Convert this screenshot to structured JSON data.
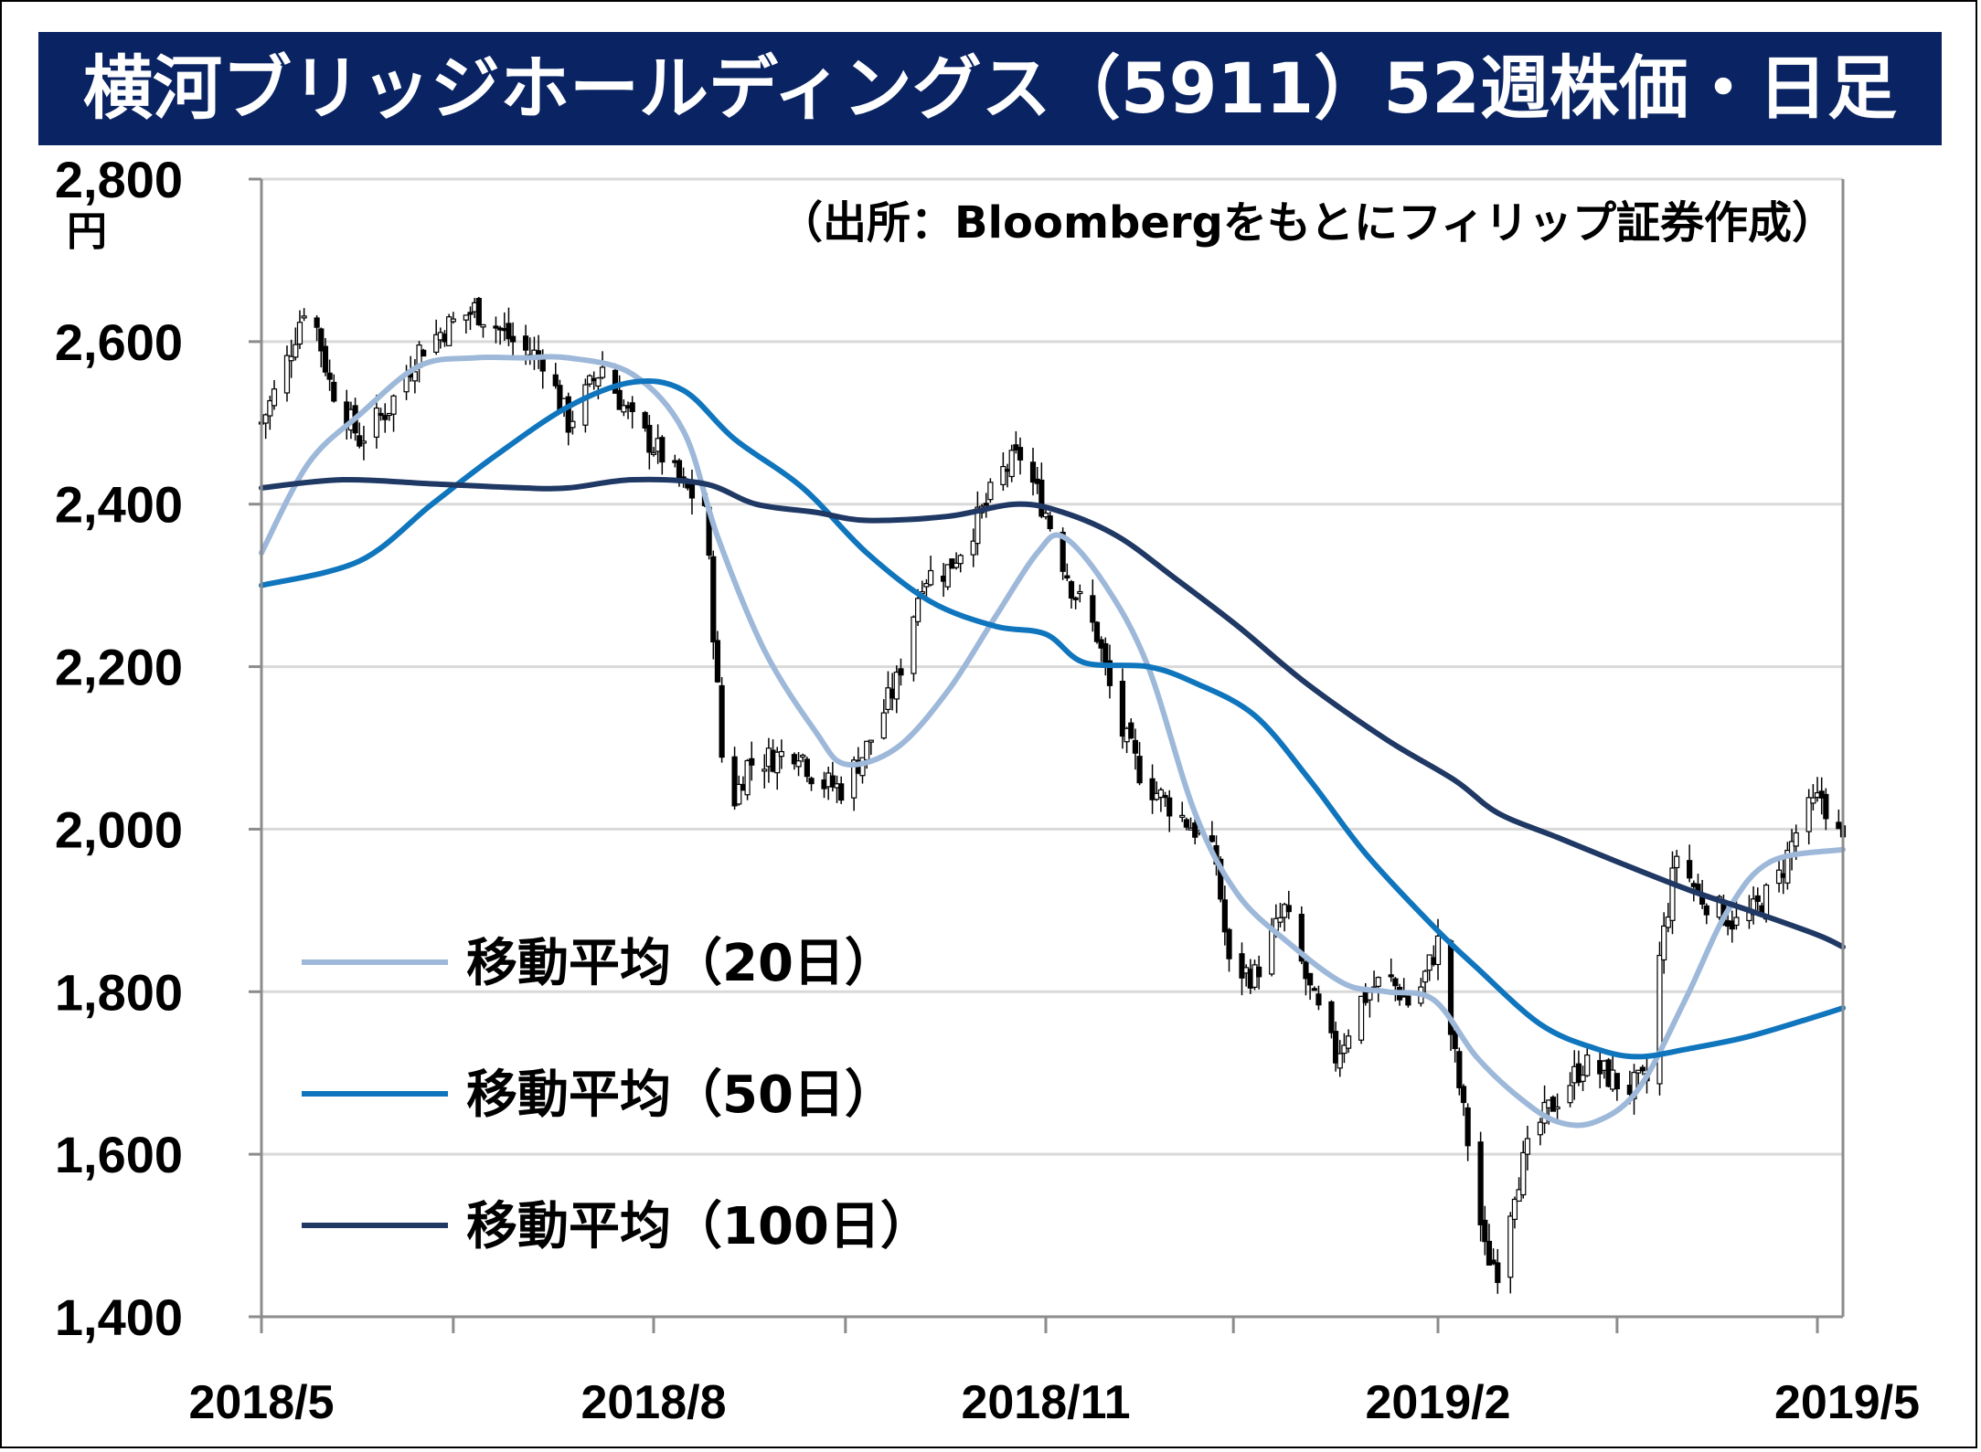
{
  "title": "横河ブリッジホールディングス（5911）52週株価・日足",
  "source_note": "（出所：Bloombergをもとにフィリップ証券作成）",
  "colors": {
    "title_bg": "#0a2463",
    "ma20": "#9db8d9",
    "ma50": "#0f75bd",
    "ma100": "#1f3864",
    "candle": "#000000",
    "grid": "#d9d9d9"
  },
  "chart_data": {
    "type": "line",
    "title": "横河ブリッジホールディングス（5911）52週株価・日足",
    "y_unit": "円",
    "ylim": [
      1400,
      2800
    ],
    "y_ticks": [
      "1,400",
      "1,600",
      "1,800",
      "2,000",
      "2,200",
      "2,400",
      "2,600",
      "2,800"
    ],
    "y_tick_values": [
      1400,
      1600,
      1800,
      2000,
      2200,
      2400,
      2600,
      2800
    ],
    "x_tick_labels": [
      "2018/5",
      "2018/8",
      "2018/11",
      "2019/2",
      "2019/5"
    ],
    "x_tick_dates": [
      "2018-05-01",
      "2018-08-01",
      "2018-11-01",
      "2019-02-01",
      "2019-05-01"
    ],
    "x_minor_tick_dates": [
      "2018-06-15",
      "2018-09-15",
      "2018-12-15",
      "2019-03-15"
    ],
    "xlim": [
      "2018-05-01",
      "2019-05-07"
    ],
    "grid": true,
    "legend_placement": "bottom-left",
    "price_path": [
      [
        "2018-05-01",
        2500
      ],
      [
        "2018-05-06",
        2560
      ],
      [
        "2018-05-12",
        2660
      ],
      [
        "2018-05-17",
        2550
      ],
      [
        "2018-05-24",
        2480
      ],
      [
        "2018-05-31",
        2520
      ],
      [
        "2018-06-07",
        2590
      ],
      [
        "2018-06-14",
        2620
      ],
      [
        "2018-06-20",
        2640
      ],
      [
        "2018-06-25",
        2620
      ],
      [
        "2018-07-01",
        2590
      ],
      [
        "2018-07-06",
        2580
      ],
      [
        "2018-07-12",
        2500
      ],
      [
        "2018-07-20",
        2570
      ],
      [
        "2018-07-27",
        2500
      ],
      [
        "2018-08-03",
        2460
      ],
      [
        "2018-08-08",
        2420
      ],
      [
        "2018-08-13",
        2400
      ],
      [
        "2018-08-16",
        2170
      ],
      [
        "2018-08-18",
        2010
      ],
      [
        "2018-08-23",
        2080
      ],
      [
        "2018-08-30",
        2090
      ],
      [
        "2018-09-04",
        2100
      ],
      [
        "2018-09-08",
        2060
      ],
      [
        "2018-09-14",
        2050
      ],
      [
        "2018-09-20",
        2100
      ],
      [
        "2018-09-27",
        2180
      ],
      [
        "2018-10-03",
        2310
      ],
      [
        "2018-10-09",
        2320
      ],
      [
        "2018-10-16",
        2380
      ],
      [
        "2018-10-22",
        2440
      ],
      [
        "2018-10-26",
        2460
      ],
      [
        "2018-11-01",
        2390
      ],
      [
        "2018-11-07",
        2300
      ],
      [
        "2018-11-13",
        2240
      ],
      [
        "2018-11-18",
        2130
      ],
      [
        "2018-11-24",
        2060
      ],
      [
        "2018-11-30",
        2030
      ],
      [
        "2018-12-06",
        2000
      ],
      [
        "2018-12-11",
        1960
      ],
      [
        "2018-12-14",
        1830
      ],
      [
        "2018-12-20",
        1820
      ],
      [
        "2018-12-27",
        1900
      ],
      [
        "2019-01-02",
        1800
      ],
      [
        "2019-01-08",
        1720
      ],
      [
        "2019-01-14",
        1790
      ],
      [
        "2019-01-20",
        1820
      ],
      [
        "2019-01-26",
        1780
      ],
      [
        "2019-02-01",
        1860
      ],
      [
        "2019-02-04",
        1750
      ],
      [
        "2019-02-07",
        1650
      ],
      [
        "2019-02-12",
        1480
      ],
      [
        "2019-02-15",
        1460
      ],
      [
        "2019-02-19",
        1560
      ],
      [
        "2019-02-24",
        1630
      ],
      [
        "2019-03-01",
        1670
      ],
      [
        "2019-03-07",
        1710
      ],
      [
        "2019-03-12",
        1700
      ],
      [
        "2019-03-17",
        1680
      ],
      [
        "2019-03-22",
        1690
      ],
      [
        "2019-03-25",
        1840
      ],
      [
        "2019-03-29",
        1970
      ],
      [
        "2019-04-03",
        1920
      ],
      [
        "2019-04-08",
        1900
      ],
      [
        "2019-04-13",
        1880
      ],
      [
        "2019-04-18",
        1910
      ],
      [
        "2019-04-22",
        1940
      ],
      [
        "2019-04-27",
        2010
      ],
      [
        "2019-05-02",
        2040
      ],
      [
        "2019-05-07",
        1980
      ]
    ],
    "series": [
      {
        "name": "移動平均（20日）",
        "color": "#9db8d9",
        "points": [
          [
            "2018-05-01",
            2340
          ],
          [
            "2018-05-12",
            2450
          ],
          [
            "2018-05-24",
            2510
          ],
          [
            "2018-06-07",
            2570
          ],
          [
            "2018-06-20",
            2580
          ],
          [
            "2018-07-01",
            2580
          ],
          [
            "2018-07-12",
            2580
          ],
          [
            "2018-07-27",
            2560
          ],
          [
            "2018-08-08",
            2490
          ],
          [
            "2018-08-16",
            2360
          ],
          [
            "2018-08-27",
            2220
          ],
          [
            "2018-09-08",
            2120
          ],
          [
            "2018-09-15",
            2080
          ],
          [
            "2018-09-27",
            2100
          ],
          [
            "2018-10-09",
            2170
          ],
          [
            "2018-10-20",
            2260
          ],
          [
            "2018-10-30",
            2340
          ],
          [
            "2018-11-05",
            2360
          ],
          [
            "2018-11-15",
            2300
          ],
          [
            "2018-11-25",
            2200
          ],
          [
            "2018-12-06",
            2020
          ],
          [
            "2018-12-16",
            1920
          ],
          [
            "2018-12-28",
            1860
          ],
          [
            "2019-01-10",
            1810
          ],
          [
            "2019-01-20",
            1800
          ],
          [
            "2019-01-31",
            1790
          ],
          [
            "2019-02-10",
            1720
          ],
          [
            "2019-02-20",
            1670
          ],
          [
            "2019-03-01",
            1640
          ],
          [
            "2019-03-10",
            1640
          ],
          [
            "2019-03-20",
            1680
          ],
          [
            "2019-03-31",
            1790
          ],
          [
            "2019-04-10",
            1900
          ],
          [
            "2019-04-20",
            1960
          ],
          [
            "2019-05-07",
            1975
          ]
        ]
      },
      {
        "name": "移動平均（50日）",
        "color": "#0f75bd",
        "points": [
          [
            "2018-05-01",
            2300
          ],
          [
            "2018-05-24",
            2330
          ],
          [
            "2018-06-10",
            2400
          ],
          [
            "2018-06-25",
            2460
          ],
          [
            "2018-07-12",
            2520
          ],
          [
            "2018-07-27",
            2550
          ],
          [
            "2018-08-08",
            2540
          ],
          [
            "2018-08-20",
            2480
          ],
          [
            "2018-09-05",
            2420
          ],
          [
            "2018-09-20",
            2340
          ],
          [
            "2018-10-05",
            2280
          ],
          [
            "2018-10-20",
            2250
          ],
          [
            "2018-11-01",
            2240
          ],
          [
            "2018-11-10",
            2205
          ],
          [
            "2018-11-25",
            2200
          ],
          [
            "2018-12-06",
            2180
          ],
          [
            "2018-12-20",
            2140
          ],
          [
            "2019-01-02",
            2060
          ],
          [
            "2019-01-15",
            1970
          ],
          [
            "2019-01-31",
            1880
          ],
          [
            "2019-02-10",
            1830
          ],
          [
            "2019-02-25",
            1760
          ],
          [
            "2019-03-10",
            1730
          ],
          [
            "2019-03-20",
            1720
          ],
          [
            "2019-04-01",
            1730
          ],
          [
            "2019-04-15",
            1745
          ],
          [
            "2019-05-01",
            1770
          ],
          [
            "2019-05-07",
            1780
          ]
        ]
      },
      {
        "name": "移動平均（100日）",
        "color": "#1f3864",
        "points": [
          [
            "2018-05-01",
            2420
          ],
          [
            "2018-05-20",
            2430
          ],
          [
            "2018-06-10",
            2425
          ],
          [
            "2018-07-01",
            2420
          ],
          [
            "2018-07-12",
            2420
          ],
          [
            "2018-07-27",
            2430
          ],
          [
            "2018-08-13",
            2425
          ],
          [
            "2018-08-25",
            2400
          ],
          [
            "2018-09-08",
            2390
          ],
          [
            "2018-09-20",
            2380
          ],
          [
            "2018-10-09",
            2385
          ],
          [
            "2018-10-25",
            2400
          ],
          [
            "2018-11-05",
            2390
          ],
          [
            "2018-11-18",
            2360
          ],
          [
            "2018-12-01",
            2310
          ],
          [
            "2018-12-16",
            2250
          ],
          [
            "2019-01-01",
            2180
          ],
          [
            "2019-01-20",
            2110
          ],
          [
            "2019-02-05",
            2060
          ],
          [
            "2019-02-15",
            2020
          ],
          [
            "2019-03-01",
            1990
          ],
          [
            "2019-03-15",
            1960
          ],
          [
            "2019-04-01",
            1925
          ],
          [
            "2019-04-15",
            1900
          ],
          [
            "2019-05-01",
            1870
          ],
          [
            "2019-05-07",
            1855
          ]
        ]
      }
    ]
  }
}
